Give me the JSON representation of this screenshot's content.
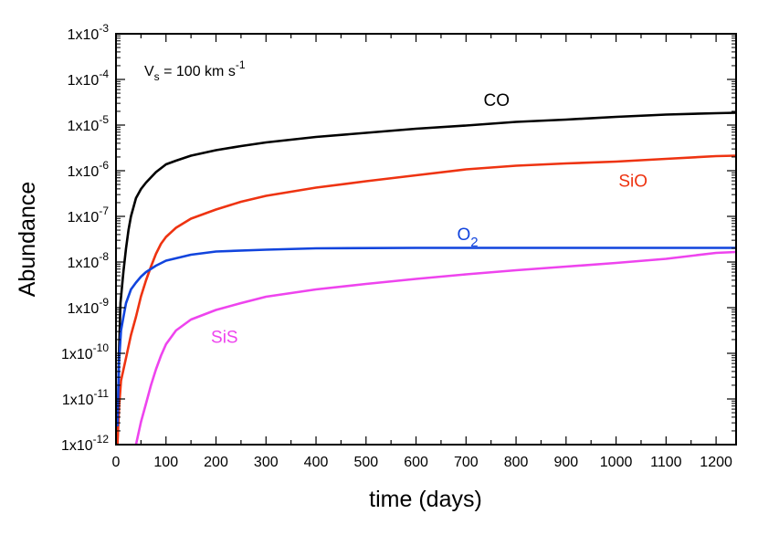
{
  "chart_data": {
    "type": "line",
    "title": "",
    "xlabel": "time (days)",
    "ylabel": "Abundance",
    "xlim": [
      0,
      1240
    ],
    "ylim_log10": [
      -12,
      -3
    ],
    "x_ticks": [
      0,
      100,
      200,
      300,
      400,
      500,
      600,
      700,
      800,
      900,
      1000,
      1100,
      1200
    ],
    "x_tick_labels": [
      "0",
      "100",
      "200",
      "300",
      "400",
      "500",
      "600",
      "700",
      "800",
      "900",
      "1000",
      "1100",
      "1200"
    ],
    "y_ticks": [
      {
        "mantissa": "1x10",
        "exponent": "-3",
        "log10": -3
      },
      {
        "mantissa": "1x10",
        "exponent": "-4",
        "log10": -4
      },
      {
        "mantissa": "1x10",
        "exponent": "-5",
        "log10": -5
      },
      {
        "mantissa": "1x10",
        "exponent": "-6",
        "log10": -6
      },
      {
        "mantissa": "1x10",
        "exponent": "-7",
        "log10": -7
      },
      {
        "mantissa": "1x10",
        "exponent": "-8",
        "log10": -8
      },
      {
        "mantissa": "1x10",
        "exponent": "-9",
        "log10": -9
      },
      {
        "mantissa": "1x10",
        "exponent": "-10",
        "log10": -10
      },
      {
        "mantissa": "1x10",
        "exponent": "-11",
        "log10": -11
      },
      {
        "mantissa": "1x10",
        "exponent": "-12",
        "log10": -12
      }
    ],
    "annotation": {
      "base": "V",
      "sub": "s",
      "rest": " = 100 km s",
      "sup": "-1"
    },
    "series": [
      {
        "name": "CO",
        "label_base": "CO",
        "label_sub": "",
        "color": "#000000",
        "label_at": {
          "x": 735,
          "log10": -4.58
        },
        "points": [
          [
            3,
            -12
          ],
          [
            6,
            -10
          ],
          [
            9,
            -8.9
          ],
          [
            15,
            -8.2
          ],
          [
            20,
            -7.7
          ],
          [
            25,
            -7.3
          ],
          [
            30,
            -7.0
          ],
          [
            40,
            -6.6
          ],
          [
            50,
            -6.4
          ],
          [
            60,
            -6.26
          ],
          [
            80,
            -6.03
          ],
          [
            100,
            -5.86
          ],
          [
            120,
            -5.78
          ],
          [
            150,
            -5.67
          ],
          [
            200,
            -5.55
          ],
          [
            250,
            -5.46
          ],
          [
            300,
            -5.38
          ],
          [
            400,
            -5.26
          ],
          [
            500,
            -5.17
          ],
          [
            600,
            -5.08
          ],
          [
            700,
            -5.01
          ],
          [
            800,
            -4.93
          ],
          [
            900,
            -4.88
          ],
          [
            1000,
            -4.82
          ],
          [
            1100,
            -4.77
          ],
          [
            1200,
            -4.74
          ],
          [
            1240,
            -4.73
          ]
        ]
      },
      {
        "name": "SiO",
        "label_base": "SiO",
        "label_sub": "",
        "color": "#ee3311",
        "label_at": {
          "x": 1005,
          "log10": -6.35
        },
        "points": [
          [
            3,
            -12
          ],
          [
            6,
            -11.2
          ],
          [
            10,
            -10.6
          ],
          [
            20,
            -10.1
          ],
          [
            30,
            -9.6
          ],
          [
            40,
            -9.2
          ],
          [
            50,
            -8.75
          ],
          [
            60,
            -8.4
          ],
          [
            70,
            -8.1
          ],
          [
            80,
            -7.82
          ],
          [
            90,
            -7.6
          ],
          [
            100,
            -7.45
          ],
          [
            120,
            -7.25
          ],
          [
            150,
            -7.05
          ],
          [
            200,
            -6.85
          ],
          [
            250,
            -6.68
          ],
          [
            300,
            -6.55
          ],
          [
            400,
            -6.37
          ],
          [
            500,
            -6.23
          ],
          [
            600,
            -6.1
          ],
          [
            700,
            -5.97
          ],
          [
            800,
            -5.89
          ],
          [
            900,
            -5.84
          ],
          [
            1000,
            -5.8
          ],
          [
            1100,
            -5.74
          ],
          [
            1200,
            -5.68
          ],
          [
            1240,
            -5.67
          ]
        ]
      },
      {
        "name": "O2",
        "label_base": "O",
        "label_sub": "2",
        "color": "#1144dd",
        "label_at": {
          "x": 682,
          "log10": -7.52
        },
        "points": [
          [
            3,
            -11.6
          ],
          [
            6,
            -10.2
          ],
          [
            10,
            -9.5
          ],
          [
            15,
            -9.2
          ],
          [
            20,
            -8.9
          ],
          [
            30,
            -8.6
          ],
          [
            40,
            -8.45
          ],
          [
            50,
            -8.32
          ],
          [
            60,
            -8.22
          ],
          [
            80,
            -8.08
          ],
          [
            100,
            -7.97
          ],
          [
            150,
            -7.84
          ],
          [
            200,
            -7.77
          ],
          [
            300,
            -7.73
          ],
          [
            400,
            -7.7
          ],
          [
            600,
            -7.69
          ],
          [
            800,
            -7.69
          ],
          [
            1000,
            -7.69
          ],
          [
            1240,
            -7.69
          ]
        ]
      },
      {
        "name": "SiS",
        "label_base": "SiS",
        "label_sub": "",
        "color": "#ee44ee",
        "label_at": {
          "x": 190,
          "log10": -9.77
        },
        "points": [
          [
            40,
            -12
          ],
          [
            50,
            -11.5
          ],
          [
            60,
            -11.1
          ],
          [
            70,
            -10.7
          ],
          [
            80,
            -10.35
          ],
          [
            90,
            -10.05
          ],
          [
            100,
            -9.8
          ],
          [
            120,
            -9.5
          ],
          [
            150,
            -9.26
          ],
          [
            200,
            -9.05
          ],
          [
            250,
            -8.9
          ],
          [
            300,
            -8.76
          ],
          [
            400,
            -8.6
          ],
          [
            500,
            -8.48
          ],
          [
            600,
            -8.37
          ],
          [
            700,
            -8.27
          ],
          [
            800,
            -8.18
          ],
          [
            900,
            -8.1
          ],
          [
            1000,
            -8.02
          ],
          [
            1100,
            -7.93
          ],
          [
            1200,
            -7.8
          ],
          [
            1240,
            -7.78
          ]
        ]
      }
    ]
  }
}
